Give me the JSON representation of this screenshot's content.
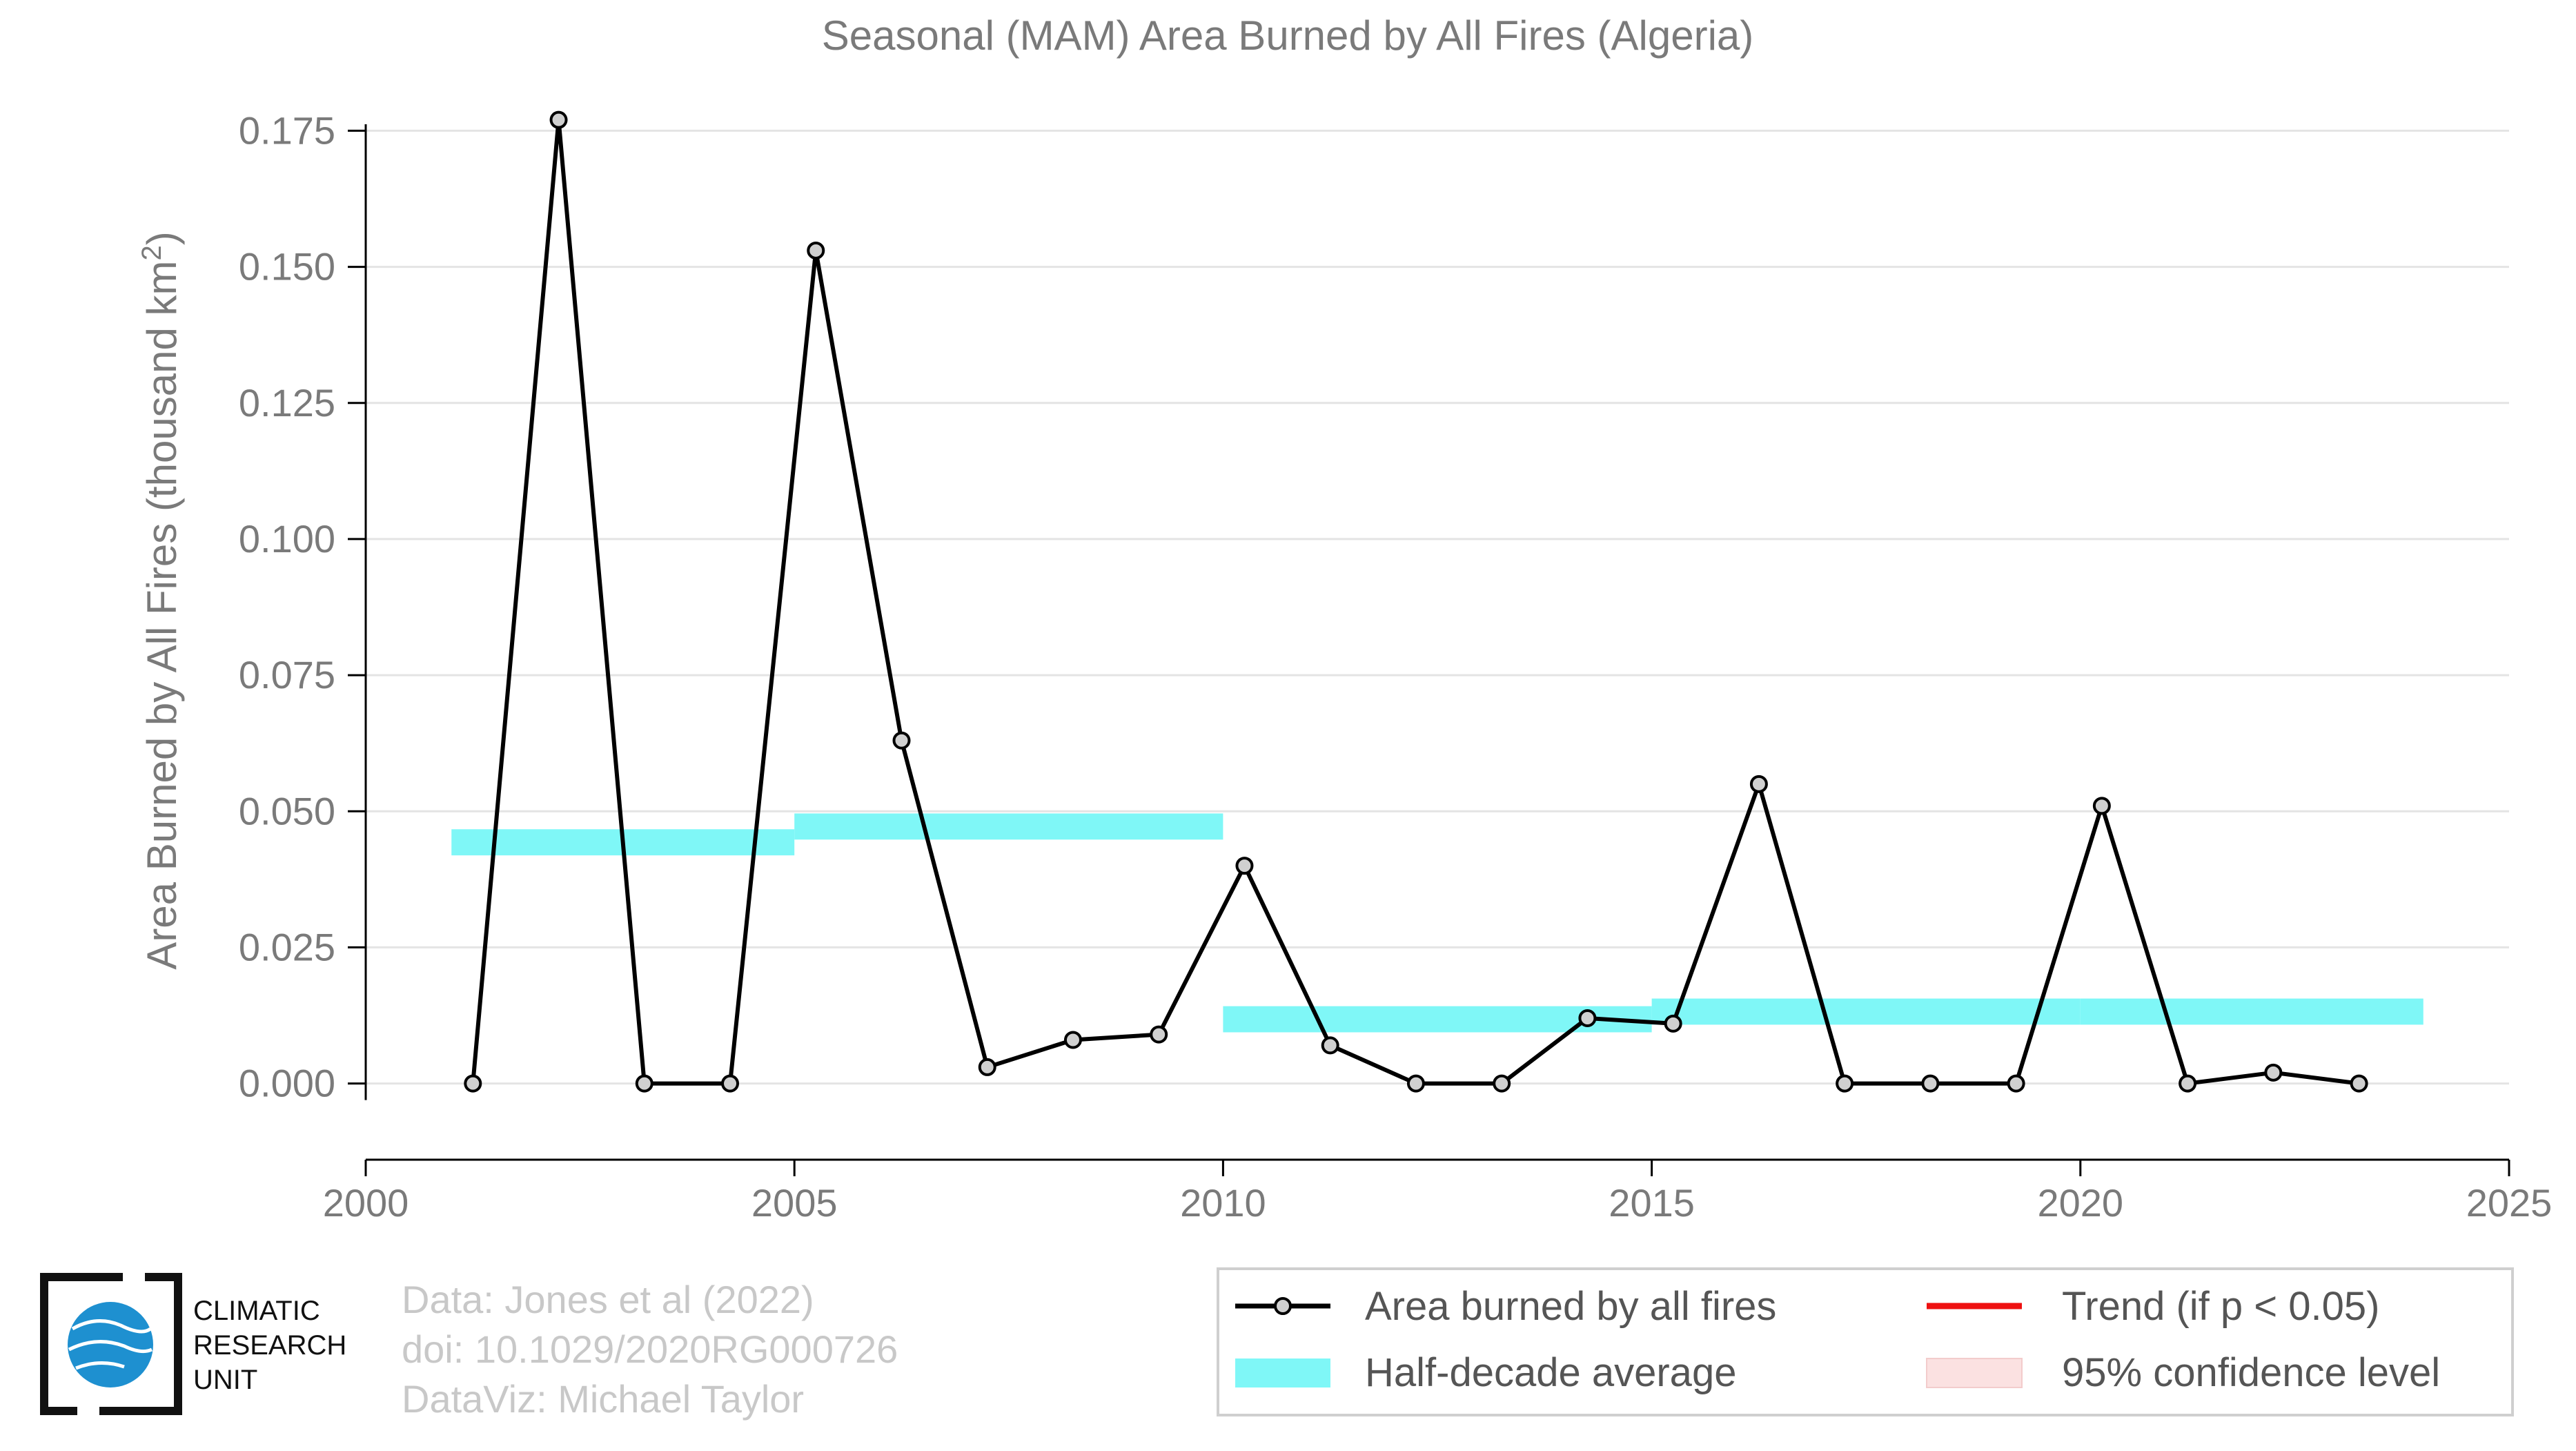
{
  "chart_data": {
    "type": "line",
    "title": "Seasonal (MAM) Area Burned by All Fires (Algeria)",
    "ylabel": "Area Burned by All Fires (thousand km",
    "ylabel_sup": "2",
    "ylabel_end": ")",
    "xlabel": "",
    "xlim": [
      2000,
      2025
    ],
    "ylim": [
      -0.014,
      0.18
    ],
    "grid": true,
    "x_ticks": [
      {
        "value": 2000,
        "label": "2000"
      },
      {
        "value": 2005,
        "label": "2005"
      },
      {
        "value": 2010,
        "label": "2010"
      },
      {
        "value": 2015,
        "label": "2015"
      },
      {
        "value": 2020,
        "label": "2020"
      },
      {
        "value": 2025,
        "label": "2025"
      }
    ],
    "y_ticks": [
      {
        "value": 0.0,
        "label": "0.000"
      },
      {
        "value": 0.025,
        "label": "0.025"
      },
      {
        "value": 0.05,
        "label": "0.050"
      },
      {
        "value": 0.075,
        "label": "0.075"
      },
      {
        "value": 0.1,
        "label": "0.100"
      },
      {
        "value": 0.125,
        "label": "0.125"
      },
      {
        "value": 0.15,
        "label": "0.150"
      },
      {
        "value": 0.175,
        "label": "0.175"
      }
    ],
    "series": [
      {
        "name": "Area burned by all fires",
        "color": "#000000",
        "marker_fill": "#d0d0d0",
        "x": [
          2001.25,
          2002.25,
          2003.25,
          2004.25,
          2005.25,
          2006.25,
          2007.25,
          2008.25,
          2009.25,
          2010.25,
          2011.25,
          2012.25,
          2013.25,
          2014.25,
          2015.25,
          2016.25,
          2017.25,
          2018.25,
          2019.25,
          2020.25,
          2021.25,
          2022.25,
          2023.25
        ],
        "y": [
          0.0,
          0.177,
          0.0,
          0.0,
          0.153,
          0.063,
          0.003,
          0.008,
          0.009,
          0.04,
          0.007,
          0.0,
          0.0,
          0.012,
          0.011,
          0.055,
          0.0,
          0.0,
          0.0,
          0.051,
          0.0,
          0.002,
          0.0
        ]
      }
    ],
    "half_decade_average": {
      "name": "Half-decade average",
      "color": "#7ff7f7",
      "segments": [
        {
          "x0": 2001.0,
          "x1": 2005.0,
          "y": 0.0443
        },
        {
          "x0": 2005.0,
          "x1": 2010.0,
          "y": 0.0472
        },
        {
          "x0": 2010.0,
          "x1": 2015.0,
          "y": 0.0118
        },
        {
          "x0": 2015.0,
          "x1": 2020.0,
          "y": 0.0132
        },
        {
          "x0": 2020.0,
          "x1": 2024.0,
          "y": 0.0132
        }
      ]
    },
    "legend": {
      "placement": "bottom-right",
      "items": [
        {
          "label": "Area burned by all fires",
          "kind": "line-marker",
          "color": "#000000"
        },
        {
          "label": "Trend (if p < 0.05)",
          "kind": "line",
          "color": "#ee1111"
        },
        {
          "label": "Half-decade average",
          "kind": "band",
          "color": "#7ff7f7"
        },
        {
          "label": "95% confidence level",
          "kind": "band",
          "color": "#fbe1e1"
        }
      ]
    }
  },
  "credits": {
    "line1": "Data: Jones et al (2022)",
    "line2": "doi: 10.1029/2020RG000726",
    "line3": "DataViz: Michael Taylor"
  },
  "logo": {
    "line1": "CLIMATIC",
    "line2": "RESEARCH",
    "line3": "UNIT",
    "globe_color": "#1e90d0"
  }
}
